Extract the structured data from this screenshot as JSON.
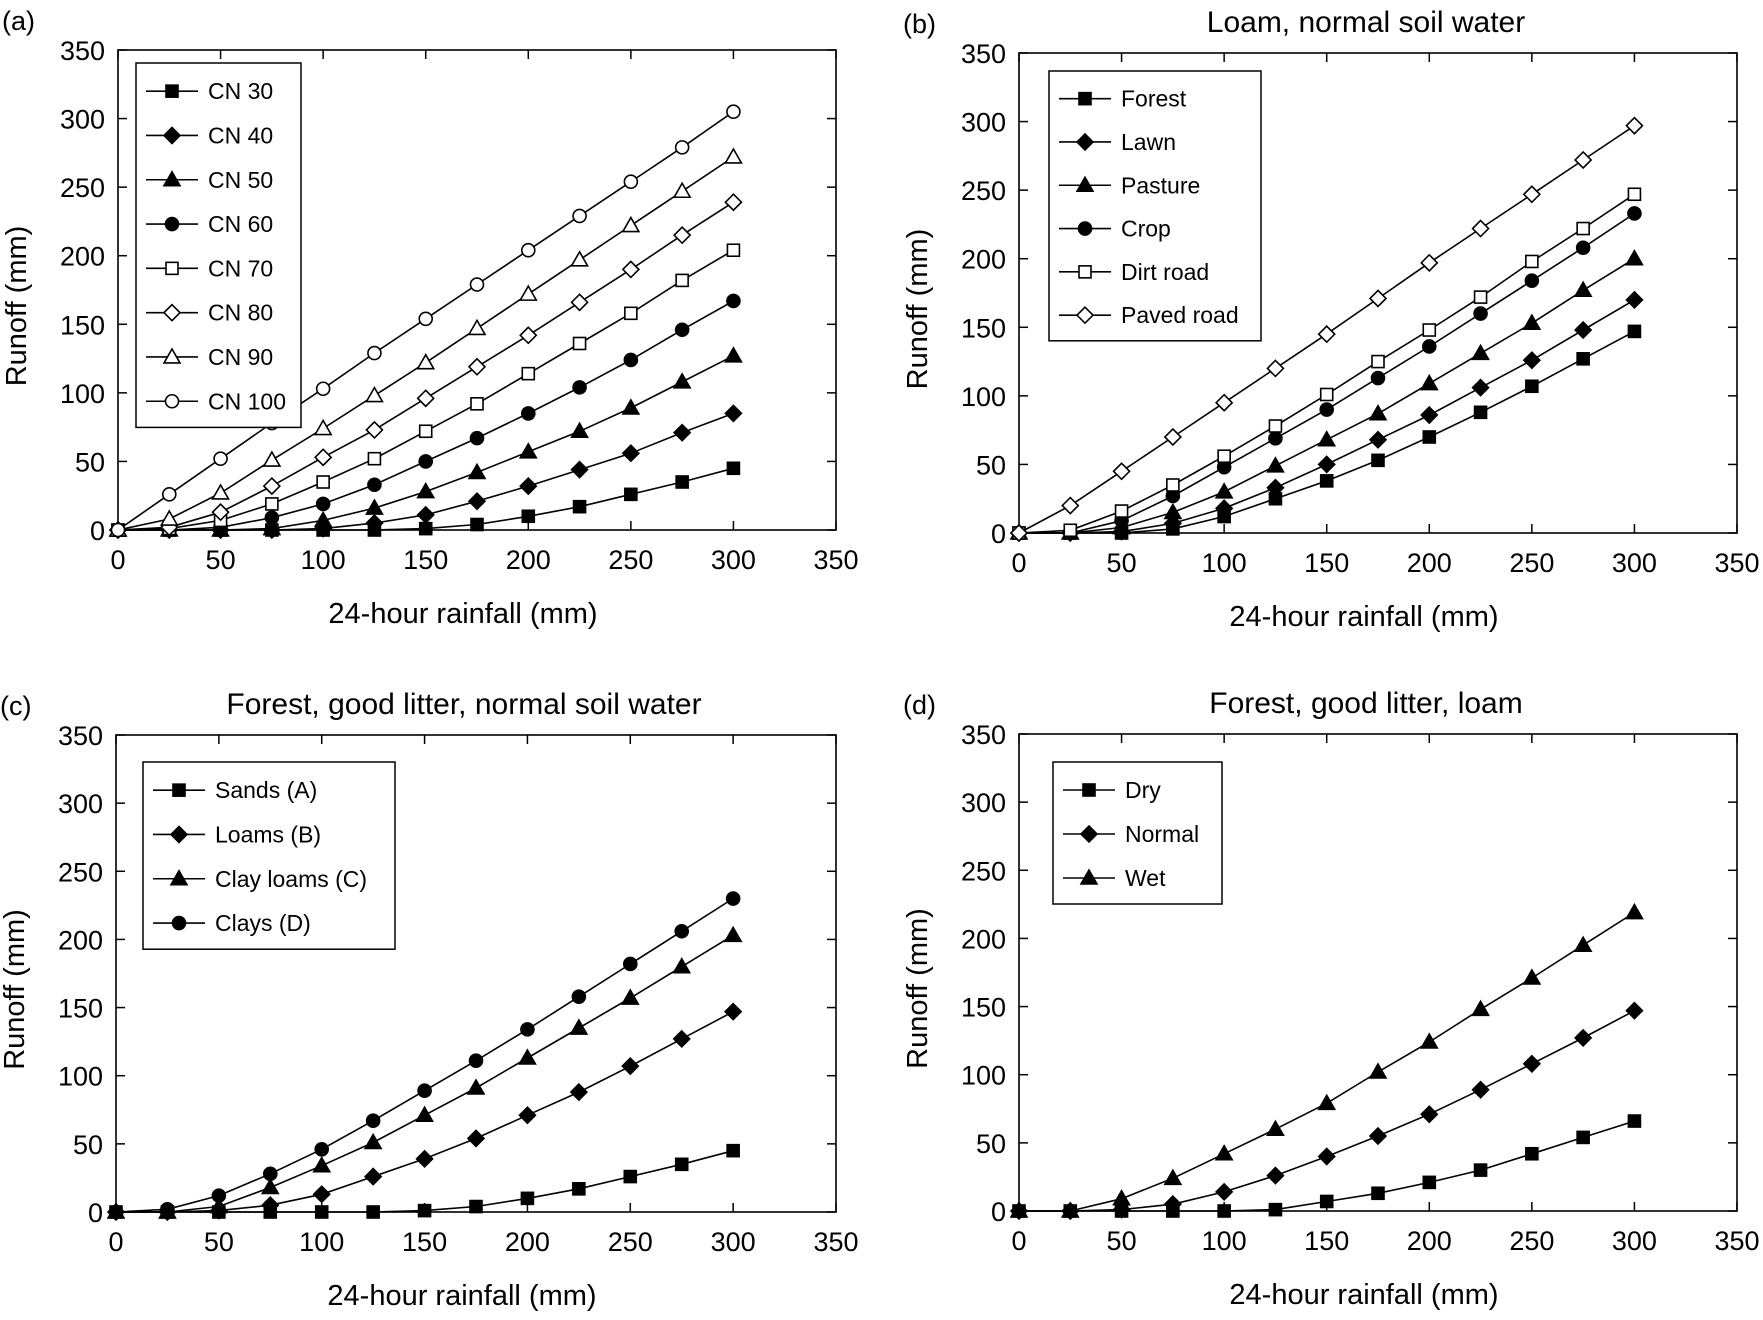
{
  "chart_data": [
    {
      "type": "line",
      "panel_label": "(a)",
      "title": "",
      "xlabel": "24-hour rainfall (mm)",
      "ylabel": "Runoff (mm)",
      "xlim": [
        0,
        350
      ],
      "ylim": [
        0,
        350
      ],
      "xticks": [
        "0",
        "50",
        "100",
        "150",
        "200",
        "250",
        "300",
        "350"
      ],
      "yticks": [
        "0",
        "50",
        "100",
        "150",
        "200",
        "250",
        "300",
        "350"
      ],
      "grid": false,
      "legend_position": "top-left",
      "x": [
        0,
        25,
        50,
        75,
        100,
        125,
        150,
        175,
        200,
        225,
        250,
        275,
        300
      ],
      "series": [
        {
          "name": "CN 30",
          "marker": "square-filled",
          "values": [
            0,
            0,
            0,
            0,
            0,
            0,
            1,
            4,
            10,
            17,
            26,
            35,
            45
          ]
        },
        {
          "name": "CN 40",
          "marker": "diamond-filled",
          "values": [
            0,
            0,
            0,
            0,
            1,
            5,
            11,
            21,
            32,
            44,
            56,
            71,
            85
          ]
        },
        {
          "name": "CN 50",
          "marker": "triangle-filled",
          "values": [
            0,
            0,
            0,
            1,
            7,
            16,
            28,
            42,
            57,
            72,
            89,
            108,
            127
          ]
        },
        {
          "name": "CN 60",
          "marker": "circle-filled",
          "values": [
            0,
            0,
            2,
            9,
            19,
            33,
            50,
            67,
            85,
            104,
            124,
            146,
            167
          ]
        },
        {
          "name": "CN 70",
          "marker": "square-open",
          "values": [
            0,
            1,
            7,
            19,
            35,
            52,
            72,
            92,
            114,
            136,
            158,
            182,
            204
          ]
        },
        {
          "name": "CN 80",
          "marker": "diamond-open",
          "values": [
            0,
            2,
            13,
            32,
            53,
            73,
            96,
            119,
            142,
            166,
            190,
            215,
            239
          ]
        },
        {
          "name": "CN 90",
          "marker": "triangle-open",
          "values": [
            0,
            8,
            27,
            51,
            74,
            98,
            122,
            147,
            172,
            197,
            222,
            247,
            272
          ]
        },
        {
          "name": "CN 100",
          "marker": "circle-open",
          "values": [
            0,
            26,
            52,
            78,
            103,
            129,
            154,
            179,
            204,
            229,
            254,
            279,
            305
          ]
        }
      ]
    },
    {
      "type": "line",
      "panel_label": "(b)",
      "title": "Loam, normal soil water",
      "xlabel": "24-hour rainfall (mm)",
      "ylabel": "Runoff (mm)",
      "xlim": [
        0,
        350
      ],
      "ylim": [
        0,
        350
      ],
      "xticks": [
        "0",
        "50",
        "100",
        "150",
        "200",
        "250",
        "300",
        "350"
      ],
      "yticks": [
        "0",
        "50",
        "100",
        "150",
        "200",
        "250",
        "300",
        "350"
      ],
      "grid": false,
      "legend_position": "top-left",
      "x": [
        0,
        25,
        50,
        75,
        100,
        125,
        150,
        175,
        200,
        225,
        250,
        275,
        300
      ],
      "series": [
        {
          "name": "Forest",
          "marker": "square-filled",
          "values": [
            0,
            0,
            0,
            3,
            12,
            25,
            38,
            53,
            70,
            88,
            107,
            127,
            147
          ]
        },
        {
          "name": "Lawn",
          "marker": "diamond-filled",
          "values": [
            0,
            0,
            1,
            7,
            18,
            33,
            50,
            68,
            86,
            106,
            126,
            148,
            170
          ]
        },
        {
          "name": "Pasture",
          "marker": "triangle-filled",
          "values": [
            0,
            0,
            4,
            15,
            30,
            49,
            68,
            87,
            109,
            131,
            153,
            177,
            200
          ]
        },
        {
          "name": "Crop",
          "marker": "circle-filled",
          "values": [
            0,
            0,
            9,
            27,
            48,
            69,
            90,
            113,
            136,
            160,
            184,
            208,
            233
          ]
        },
        {
          "name": "Dirt road",
          "marker": "square-open",
          "values": [
            0,
            2,
            16,
            35,
            56,
            78,
            101,
            125,
            148,
            172,
            198,
            222,
            247
          ]
        },
        {
          "name": "Paved road",
          "marker": "diamond-open",
          "values": [
            0,
            20,
            45,
            70,
            95,
            120,
            145,
            171,
            197,
            222,
            247,
            272,
            297
          ]
        }
      ]
    },
    {
      "type": "line",
      "panel_label": "(c)",
      "title": "Forest, good litter, normal soil water",
      "xlabel": "24-hour rainfall (mm)",
      "ylabel": "Runoff (mm)",
      "xlim": [
        0,
        350
      ],
      "ylim": [
        0,
        350
      ],
      "xticks": [
        "0",
        "50",
        "100",
        "150",
        "200",
        "250",
        "300",
        "350"
      ],
      "yticks": [
        "0",
        "50",
        "100",
        "150",
        "200",
        "250",
        "300",
        "350"
      ],
      "grid": false,
      "legend_position": "top-left",
      "x": [
        0,
        25,
        50,
        75,
        100,
        125,
        150,
        175,
        200,
        225,
        250,
        275,
        300
      ],
      "series": [
        {
          "name": "Sands (A)",
          "marker": "square-filled",
          "values": [
            0,
            0,
            0,
            0,
            0,
            0,
            1,
            4,
            10,
            17,
            26,
            35,
            45
          ]
        },
        {
          "name": "Loams (B)",
          "marker": "diamond-filled",
          "values": [
            0,
            0,
            1,
            5,
            13,
            26,
            39,
            54,
            71,
            88,
            107,
            127,
            147
          ]
        },
        {
          "name": "Clay loams (C)",
          "marker": "triangle-filled",
          "values": [
            0,
            0,
            4,
            18,
            34,
            51,
            71,
            91,
            113,
            135,
            157,
            180,
            203
          ]
        },
        {
          "name": "Clays (D)",
          "marker": "circle-filled",
          "values": [
            0,
            2,
            12,
            28,
            46,
            67,
            89,
            111,
            134,
            158,
            182,
            206,
            230
          ]
        }
      ]
    },
    {
      "type": "line",
      "panel_label": "(d)",
      "title": "Forest, good litter, loam",
      "xlabel": "24-hour rainfall (mm)",
      "ylabel": "Runoff (mm)",
      "xlim": [
        0,
        350
      ],
      "ylim": [
        0,
        350
      ],
      "xticks": [
        "0",
        "50",
        "100",
        "150",
        "200",
        "250",
        "300",
        "350"
      ],
      "yticks": [
        "0",
        "50",
        "100",
        "150",
        "200",
        "250",
        "300",
        "350"
      ],
      "grid": false,
      "legend_position": "top-left",
      "x": [
        0,
        25,
        50,
        75,
        100,
        125,
        150,
        175,
        200,
        225,
        250,
        275,
        300
      ],
      "series": [
        {
          "name": "Dry",
          "marker": "square-filled",
          "values": [
            0,
            0,
            0,
            0,
            0,
            1,
            7,
            13,
            21,
            30,
            42,
            54,
            66
          ]
        },
        {
          "name": "Normal",
          "marker": "diamond-filled",
          "values": [
            0,
            0,
            1,
            5,
            14,
            26,
            40,
            55,
            71,
            89,
            108,
            127,
            147
          ]
        },
        {
          "name": "Wet",
          "marker": "triangle-filled",
          "values": [
            0,
            0,
            9,
            24,
            42,
            60,
            79,
            102,
            124,
            148,
            171,
            195,
            219
          ]
        }
      ]
    }
  ]
}
